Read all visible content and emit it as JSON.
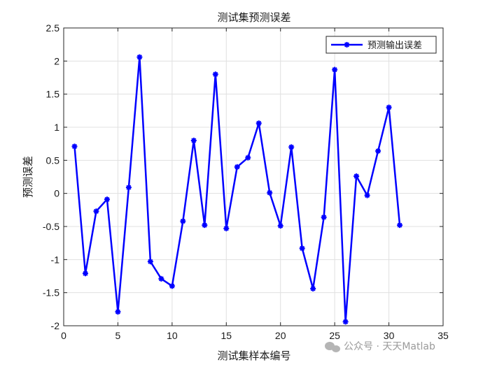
{
  "chart_data": {
    "type": "line",
    "title": "测试集预测误差",
    "xlabel": "测试集样本编号",
    "ylabel": "预测误差",
    "xlim": [
      0,
      35
    ],
    "ylim": [
      -2,
      2.5
    ],
    "x_ticks": [
      0,
      5,
      10,
      15,
      20,
      25,
      30,
      35
    ],
    "y_ticks": [
      -2,
      -1.5,
      -1,
      -0.5,
      0,
      0.5,
      1,
      1.5,
      2,
      2.5
    ],
    "grid": true,
    "legend_position": "top-right",
    "series": [
      {
        "name": "预测输出误差",
        "color": "#0000ff",
        "marker": "asterisk",
        "x": [
          1,
          2,
          3,
          4,
          5,
          6,
          7,
          8,
          9,
          10,
          11,
          12,
          13,
          14,
          15,
          16,
          17,
          18,
          19,
          20,
          21,
          22,
          23,
          24,
          25,
          26,
          27,
          28,
          29,
          30,
          31
        ],
        "values": [
          0.71,
          -1.21,
          -0.27,
          -0.09,
          -1.79,
          0.09,
          2.06,
          -1.03,
          -1.29,
          -1.4,
          -0.42,
          0.8,
          -0.48,
          1.8,
          -0.53,
          0.4,
          0.54,
          1.06,
          0.01,
          -0.49,
          0.7,
          -0.83,
          -1.44,
          -0.36,
          1.87,
          -1.94,
          0.26,
          -0.03,
          0.64,
          1.3,
          -0.48
        ]
      }
    ]
  },
  "watermark": {
    "icon": "wechat-icon",
    "text": "公众号 · 天天Matlab"
  }
}
